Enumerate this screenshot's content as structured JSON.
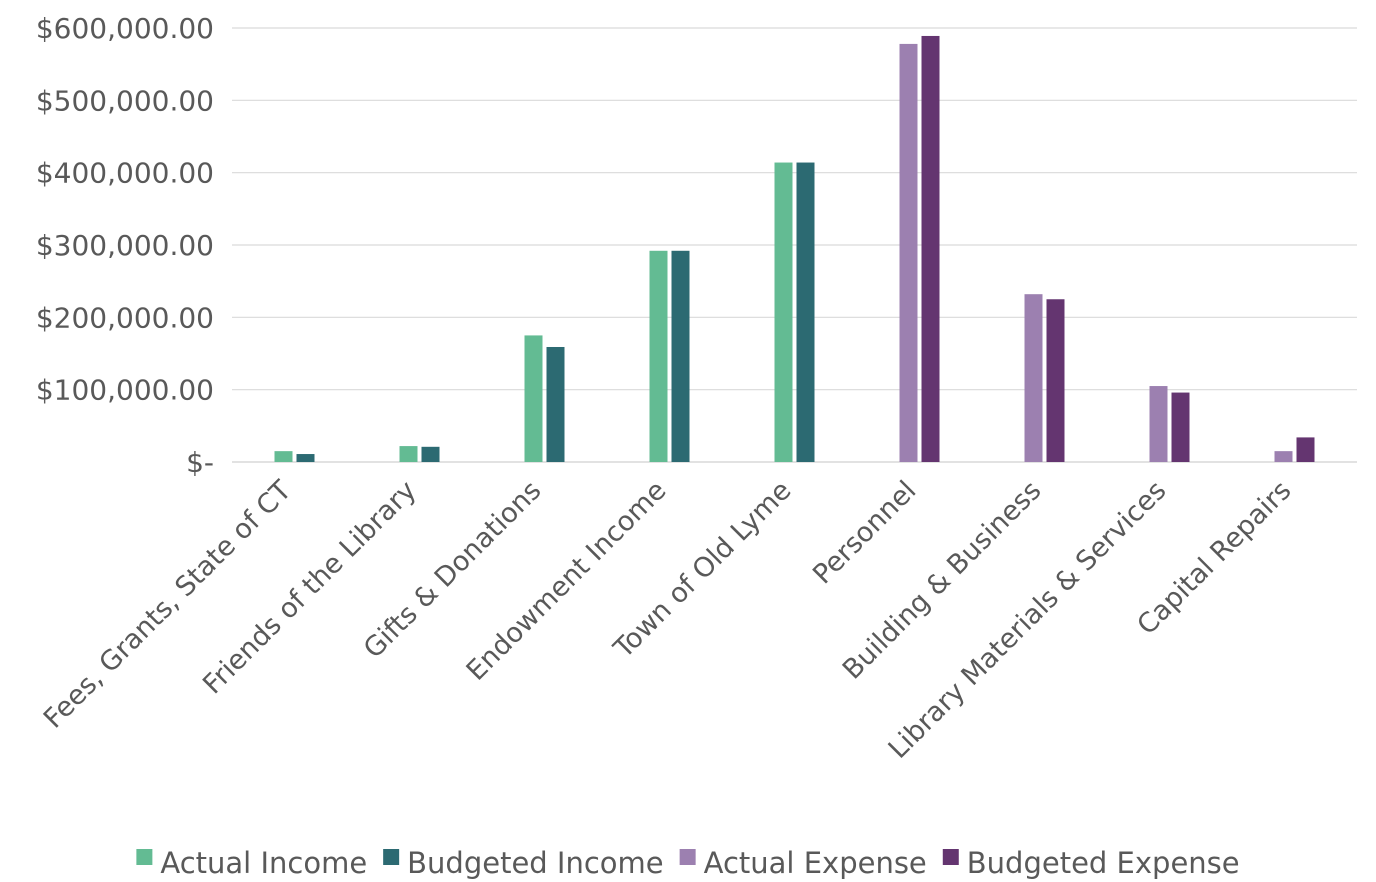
{
  "chart_data": {
    "type": "bar",
    "categories": [
      "Fees, Grants, State of CT",
      "Friends of the Library",
      "Gifts & Donations",
      "Endowment Income",
      "Town of Old Lyme",
      "Personnel",
      "Building & Business",
      "Library Materials & Services",
      "Capital Repairs"
    ],
    "series": [
      {
        "name": "Actual Income",
        "color": "#63bb93",
        "values": [
          15000,
          22000,
          175000,
          292000,
          414000,
          null,
          null,
          null,
          null
        ]
      },
      {
        "name": "Budgeted Income",
        "color": "#2c6a72",
        "values": [
          11000,
          21000,
          159000,
          292000,
          414000,
          null,
          null,
          null,
          null
        ]
      },
      {
        "name": "Actual Expense",
        "color": "#9c80b0",
        "values": [
          null,
          null,
          null,
          null,
          null,
          578000,
          232000,
          105000,
          15000
        ]
      },
      {
        "name": "Budgeted Expense",
        "color": "#643570",
        "values": [
          null,
          null,
          null,
          null,
          null,
          589000,
          225000,
          96000,
          34000
        ]
      }
    ],
    "y_ticks": [
      {
        "value": 0,
        "label": "$-"
      },
      {
        "value": 100000,
        "label": "$100,000.00"
      },
      {
        "value": 200000,
        "label": "$200,000.00"
      },
      {
        "value": 300000,
        "label": "$300,000.00"
      },
      {
        "value": 400000,
        "label": "$400,000.00"
      },
      {
        "value": 500000,
        "label": "$500,000.00"
      },
      {
        "value": 600000,
        "label": "$600,000.00"
      }
    ],
    "ylim": [
      0,
      600000
    ],
    "title": "",
    "xlabel": "",
    "ylabel": "",
    "grid": true,
    "legend_position": "bottom"
  }
}
